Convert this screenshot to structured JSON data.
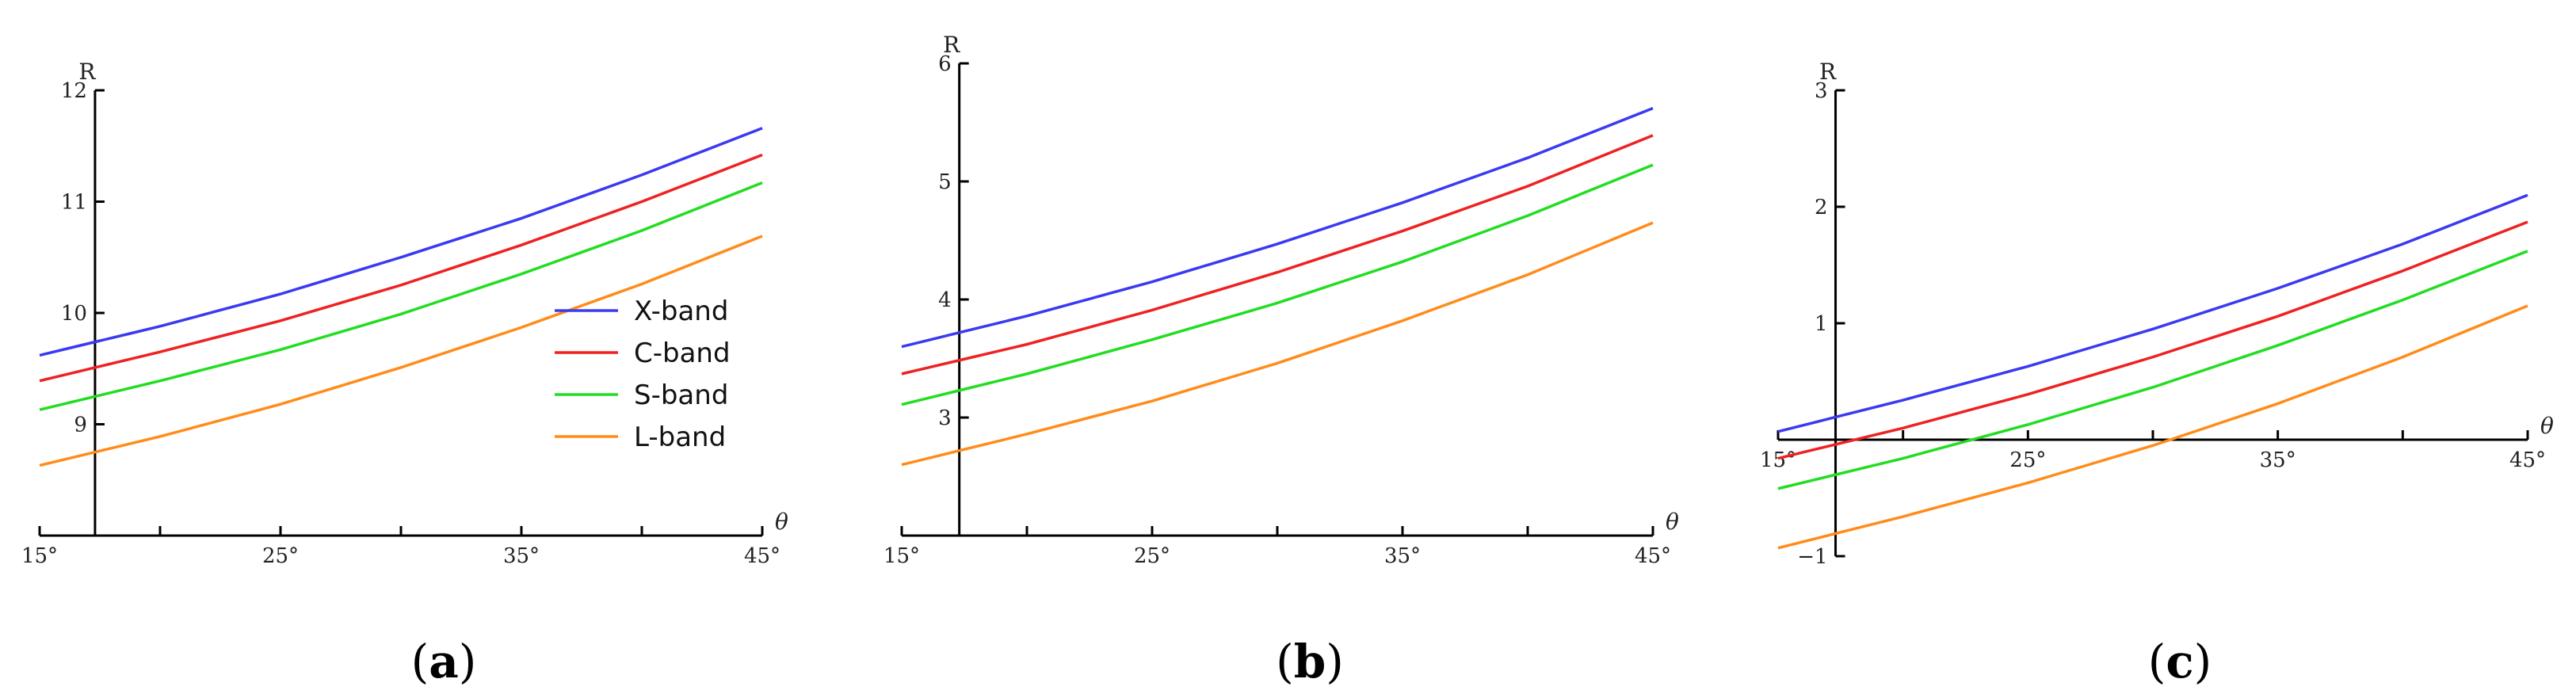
{
  "chart_data": [
    {
      "type": "line",
      "panel": "a",
      "xlabel": "θ",
      "ylabel": "R",
      "x_ticks": [
        "15°",
        "25°",
        "35°",
        "45°"
      ],
      "y_ticks": [
        "9",
        "10",
        "11",
        "12"
      ],
      "xlim": [
        15,
        45
      ],
      "ylim": [
        8,
        12
      ],
      "y_axis_at_x": 17.3,
      "x_axis_at_y": 8,
      "series": [
        {
          "name": "X-band",
          "color": "#3a3af0",
          "x": [
            15,
            20,
            25,
            30,
            35,
            40,
            45
          ],
          "values": [
            9.62,
            9.88,
            10.17,
            10.5,
            10.85,
            11.24,
            11.66
          ]
        },
        {
          "name": "C-band",
          "color": "#ee2222",
          "x": [
            15,
            20,
            25,
            30,
            35,
            40,
            45
          ],
          "values": [
            9.39,
            9.65,
            9.93,
            10.25,
            10.61,
            11.0,
            11.42
          ]
        },
        {
          "name": "S-band",
          "color": "#22dd22",
          "x": [
            15,
            20,
            25,
            30,
            35,
            40,
            45
          ],
          "values": [
            9.13,
            9.39,
            9.67,
            9.99,
            10.35,
            10.74,
            11.17
          ]
        },
        {
          "name": "L-band",
          "color": "#ff8c1a",
          "x": [
            15,
            20,
            25,
            30,
            35,
            40,
            45
          ],
          "values": [
            8.63,
            8.89,
            9.18,
            9.51,
            9.87,
            10.26,
            10.69
          ]
        }
      ],
      "legend": {
        "placement": "lower-right",
        "entries": [
          "X-band",
          "C-band",
          "S-band",
          "L-band"
        ]
      }
    },
    {
      "type": "line",
      "panel": "b",
      "xlabel": "θ",
      "ylabel": "R",
      "x_ticks": [
        "15°",
        "25°",
        "35°",
        "45°"
      ],
      "y_ticks": [
        "3",
        "4",
        "5",
        "6"
      ],
      "xlim": [
        15,
        45
      ],
      "ylim": [
        2,
        6
      ],
      "y_axis_at_x": 17.3,
      "x_axis_at_y": 2,
      "series": [
        {
          "name": "X-band",
          "color": "#3a3af0",
          "x": [
            15,
            20,
            25,
            30,
            35,
            40,
            45
          ],
          "values": [
            3.6,
            3.86,
            4.15,
            4.47,
            4.82,
            5.2,
            5.62
          ]
        },
        {
          "name": "C-band",
          "color": "#ee2222",
          "x": [
            15,
            20,
            25,
            30,
            35,
            40,
            45
          ],
          "values": [
            3.37,
            3.62,
            3.91,
            4.23,
            4.58,
            4.96,
            5.39
          ]
        },
        {
          "name": "S-band",
          "color": "#22dd22",
          "x": [
            15,
            20,
            25,
            30,
            35,
            40,
            45
          ],
          "values": [
            3.11,
            3.37,
            3.66,
            3.97,
            4.32,
            4.71,
            5.14
          ]
        },
        {
          "name": "L-band",
          "color": "#ff8c1a",
          "x": [
            15,
            20,
            25,
            30,
            35,
            40,
            45
          ],
          "values": [
            2.6,
            2.86,
            3.14,
            3.46,
            3.82,
            4.21,
            4.65
          ]
        }
      ]
    },
    {
      "type": "line",
      "panel": "c",
      "xlabel": "θ",
      "ylabel": "R",
      "x_ticks": [
        "15°",
        "25°",
        "35°",
        "45°"
      ],
      "y_ticks": [
        "−1",
        "1",
        "2",
        "3"
      ],
      "xlim": [
        15,
        45
      ],
      "ylim": [
        -1,
        3
      ],
      "y_axis_at_x": 17.3,
      "x_axis_at_y": 0,
      "series": [
        {
          "name": "X-band",
          "color": "#3a3af0",
          "x": [
            15,
            20,
            25,
            30,
            35,
            40,
            45
          ],
          "values": [
            0.07,
            0.34,
            0.63,
            0.95,
            1.3,
            1.68,
            2.1
          ]
        },
        {
          "name": "C-band",
          "color": "#ee2222",
          "x": [
            15,
            20,
            25,
            30,
            35,
            40,
            45
          ],
          "values": [
            -0.16,
            0.1,
            0.39,
            0.71,
            1.06,
            1.45,
            1.87
          ]
        },
        {
          "name": "S-band",
          "color": "#22dd22",
          "x": [
            15,
            20,
            25,
            30,
            35,
            40,
            45
          ],
          "values": [
            -0.42,
            -0.16,
            0.13,
            0.45,
            0.81,
            1.2,
            1.62
          ]
        },
        {
          "name": "L-band",
          "color": "#ff8c1a",
          "x": [
            15,
            20,
            25,
            30,
            35,
            40,
            45
          ],
          "values": [
            -0.93,
            -0.66,
            -0.37,
            -0.05,
            0.31,
            0.71,
            1.15
          ]
        }
      ]
    }
  ],
  "captions": {
    "a": {
      "open": "(",
      "letter": "a",
      "close": ")"
    },
    "b": {
      "open": "(",
      "letter": "b",
      "close": ")"
    },
    "c": {
      "open": "(",
      "letter": "c",
      "close": ")"
    }
  }
}
